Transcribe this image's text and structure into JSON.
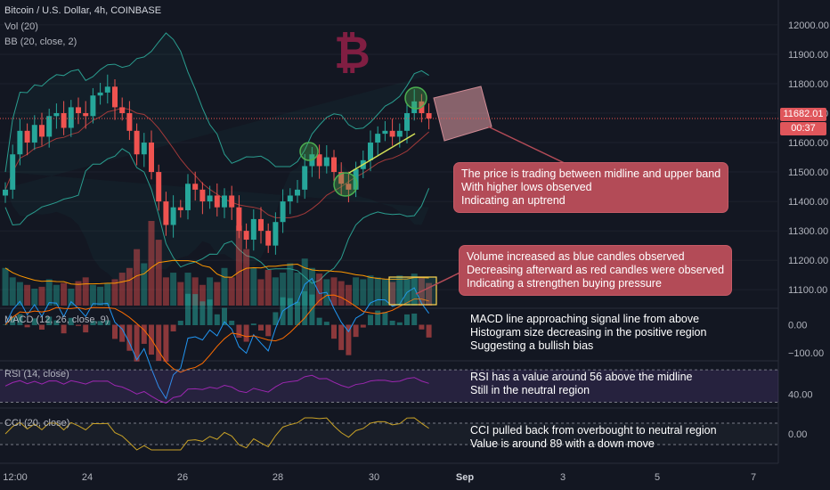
{
  "header": {
    "title": "Bitcoin / U.S. Dollar, 4h, COINBASE",
    "vol_label": "Vol (20)",
    "bb_label": "BB (20, close, 2)"
  },
  "logo_glyph": "₿",
  "price_tags": {
    "last_price": "11682.01",
    "countdown": "00:37"
  },
  "panes": {
    "macd": {
      "title": "MACD (12, 26, close, 9)",
      "ticks": [
        "0.00",
        "−100.00"
      ]
    },
    "rsi": {
      "title": "RSI (14, close)",
      "ticks": [
        "40.00"
      ]
    },
    "cci": {
      "title": "CCI (20, close)",
      "ticks": [
        "0.00"
      ]
    }
  },
  "callouts": {
    "bb_note": [
      "The price is trading between midline and upper band",
      "With higher lows observed",
      "Indicating an uptrend"
    ],
    "volume_note": [
      "Volume increased as blue candles observed",
      "Decreasing afterward as red candles were observed",
      "Indicating a strengthen buying pressure"
    ]
  },
  "notes": {
    "macd": [
      "MACD line approaching signal line from above",
      "Histogram size decreasing in the positive region",
      "Suggesting a bullish bias"
    ],
    "rsi": [
      "RSI has a value around 56 above the midline",
      "Still in the neutral region"
    ],
    "cci": [
      "CCI pulled back from overbought to neutral region",
      "Value is around 89 with a down move"
    ]
  },
  "colors": {
    "background": "#131722",
    "up": "#26a69a",
    "down": "#ef5350",
    "bb_band": "#2a9d8f",
    "bb_mid": "#a33a3a",
    "annotation": "#b34b57",
    "rsi_line": "#9c27b0",
    "cci_line": "#c9a227",
    "macd_line": "#2196f3",
    "signal_line": "#ff6d00"
  },
  "chart_data": {
    "type": "candlestick",
    "symbol": "Bitcoin / U.S. Dollar",
    "interval": "4h",
    "exchange": "COINBASE",
    "price_axis_ticks": [
      "12000.00",
      "11900.00",
      "11800.00",
      "11700.00",
      "11600.00",
      "11500.00",
      "11400.00",
      "11300.00",
      "11200.00",
      "11100.00"
    ],
    "ylim": [
      11040,
      12030
    ],
    "time_axis_ticks": [
      "12:00",
      "24",
      "26",
      "28",
      "30",
      "Sep",
      "3",
      "5",
      "7"
    ],
    "last_price": 11682.01,
    "candles_close": [
      11440,
      11560,
      11640,
      11600,
      11660,
      11620,
      11690,
      11700,
      11650,
      11720,
      11700,
      11690,
      11760,
      11770,
      11790,
      11720,
      11700,
      11640,
      11560,
      11600,
      11500,
      11400,
      11320,
      11380,
      11370,
      11460,
      11440,
      11400,
      11420,
      11380,
      11420,
      11380,
      11300,
      11270,
      11340,
      11300,
      11250,
      11330,
      11400,
      11420,
      11440,
      11520,
      11560,
      11520,
      11550,
      11500,
      11460,
      11440,
      11510,
      11540,
      11600,
      11630,
      11640,
      11620,
      11640,
      11700,
      11740,
      11700,
      11682
    ],
    "volume": [
      40,
      30,
      25,
      22,
      18,
      20,
      28,
      22,
      24,
      18,
      26,
      30,
      22,
      20,
      24,
      28,
      35,
      40,
      60,
      45,
      90,
      70,
      30,
      35,
      25,
      35,
      30,
      22,
      30,
      25,
      40,
      30,
      85,
      60,
      40,
      28,
      38,
      30,
      35,
      45,
      35,
      50,
      40,
      34,
      28,
      30,
      26,
      22,
      30,
      28,
      32,
      30,
      28,
      25,
      32,
      28,
      34,
      30,
      24
    ],
    "macd_ylim": [
      -120,
      40
    ],
    "rsi_ylim": [
      25,
      80
    ],
    "rsi_value": 56,
    "cci_value": 89
  }
}
